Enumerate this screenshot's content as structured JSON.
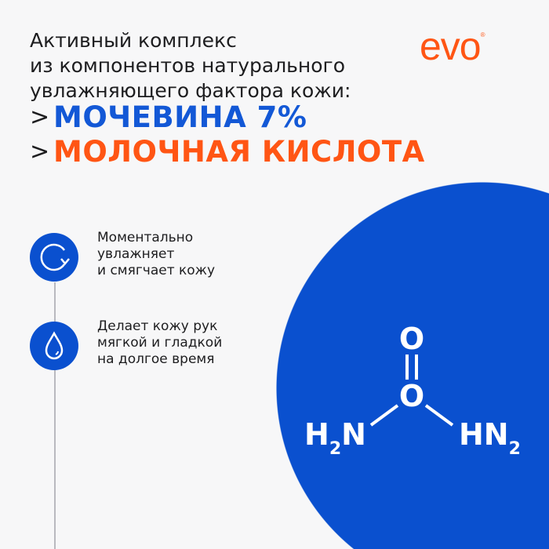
{
  "headline": "Активный комплекс\nиз компонентов натурального\nувлажняющего фактора кожи:",
  "bullets": [
    {
      "text": "МОЧЕВИНА 7%",
      "color": "#1358d6"
    },
    {
      "text": "МОЛОЧНАЯ КИСЛОТА",
      "color": "#ff5514"
    }
  ],
  "logo": {
    "text": "evo",
    "mark": "®",
    "color": "#ff5514"
  },
  "features": [
    {
      "icon": "refresh-icon",
      "text": "Моментально\nувлажняет\nи смягчает кожу"
    },
    {
      "icon": "water-drop-icon",
      "text": "Делает кожу рук\nмягкой и гладкой\nна долгое время"
    }
  ],
  "molecule": {
    "top": "O",
    "center": "O",
    "left": "H",
    "left_sub": "2",
    "left_n": "N",
    "right": "HN",
    "right_sub": "2"
  },
  "colors": {
    "blue": "#0a50cf",
    "orange": "#ff5514"
  }
}
